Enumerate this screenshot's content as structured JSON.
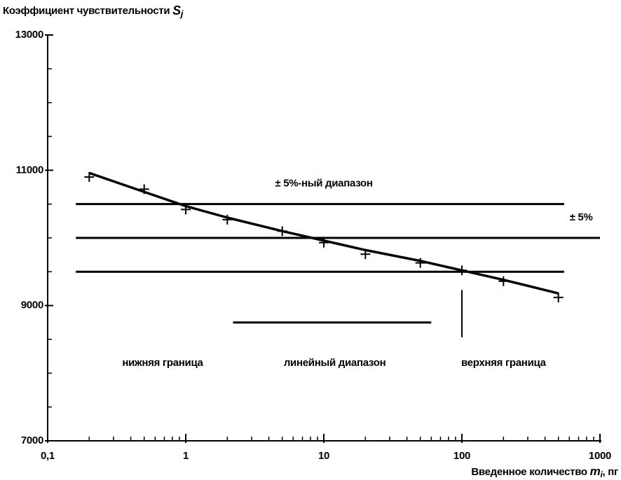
{
  "chart_data": {
    "type": "scatter",
    "y_label": {
      "text": "Коэффициент чувствительности",
      "symbol": "S",
      "subscript": "j"
    },
    "x_label": {
      "text": "Введенное количество",
      "symbol": "m",
      "subscript": "i",
      "unit": ", пг"
    },
    "x_scale": "log",
    "xlim": [
      0.1,
      1000
    ],
    "ylim": [
      7000,
      13000
    ],
    "xticks": [
      {
        "value": 0.1,
        "label": "0,1"
      },
      1,
      10,
      100,
      1000
    ],
    "yticks": [
      7000,
      9000,
      11000,
      13000
    ],
    "y_minor_ticks": [
      7500,
      8000,
      8500,
      9500,
      10000,
      10500,
      11500,
      12000,
      12500
    ],
    "x_minor_ticks": true,
    "color": "#000000",
    "series": [
      {
        "type": "scatter",
        "x": [
          0.2,
          0.5,
          1,
          2,
          5,
          10,
          20,
          50,
          100,
          200,
          500
        ],
        "values": [
          10900,
          10720,
          10420,
          10270,
          10100,
          9930,
          9760,
          9630,
          9520,
          9360,
          9120
        ]
      },
      {
        "type": "line",
        "x": [
          0.2,
          0.5,
          1,
          2,
          5,
          10,
          20,
          50,
          100,
          200,
          500
        ],
        "values": [
          10960,
          10680,
          10470,
          10300,
          10100,
          9960,
          9820,
          9660,
          9520,
          9380,
          9180
        ]
      }
    ],
    "reference_lines": [
      {
        "value": 10500,
        "xrange": [
          0.16,
          550
        ]
      },
      {
        "value": 10000,
        "xrange": [
          0.16,
          1000
        ]
      },
      {
        "value": 9500,
        "xrange": [
          0.16,
          550
        ]
      }
    ],
    "segments": [
      {
        "x": [
          2.2,
          60
        ],
        "y": [
          8750,
          8750
        ]
      },
      {
        "x": [
          100,
          100
        ],
        "y": [
          9230,
          8530
        ]
      }
    ],
    "annotations": [
      {
        "text": "± 5%-ный диапазон",
        "x": 10,
        "y": 10800
      },
      {
        "text": "± 5%",
        "x": 730,
        "y": 10300
      },
      {
        "text": "нижняя граница",
        "x": 0.68,
        "y": 8150
      },
      {
        "text": "линейный диапазон",
        "x": 12,
        "y": 8150
      },
      {
        "text": "верхняя граница",
        "x": 200,
        "y": 8150
      }
    ]
  }
}
